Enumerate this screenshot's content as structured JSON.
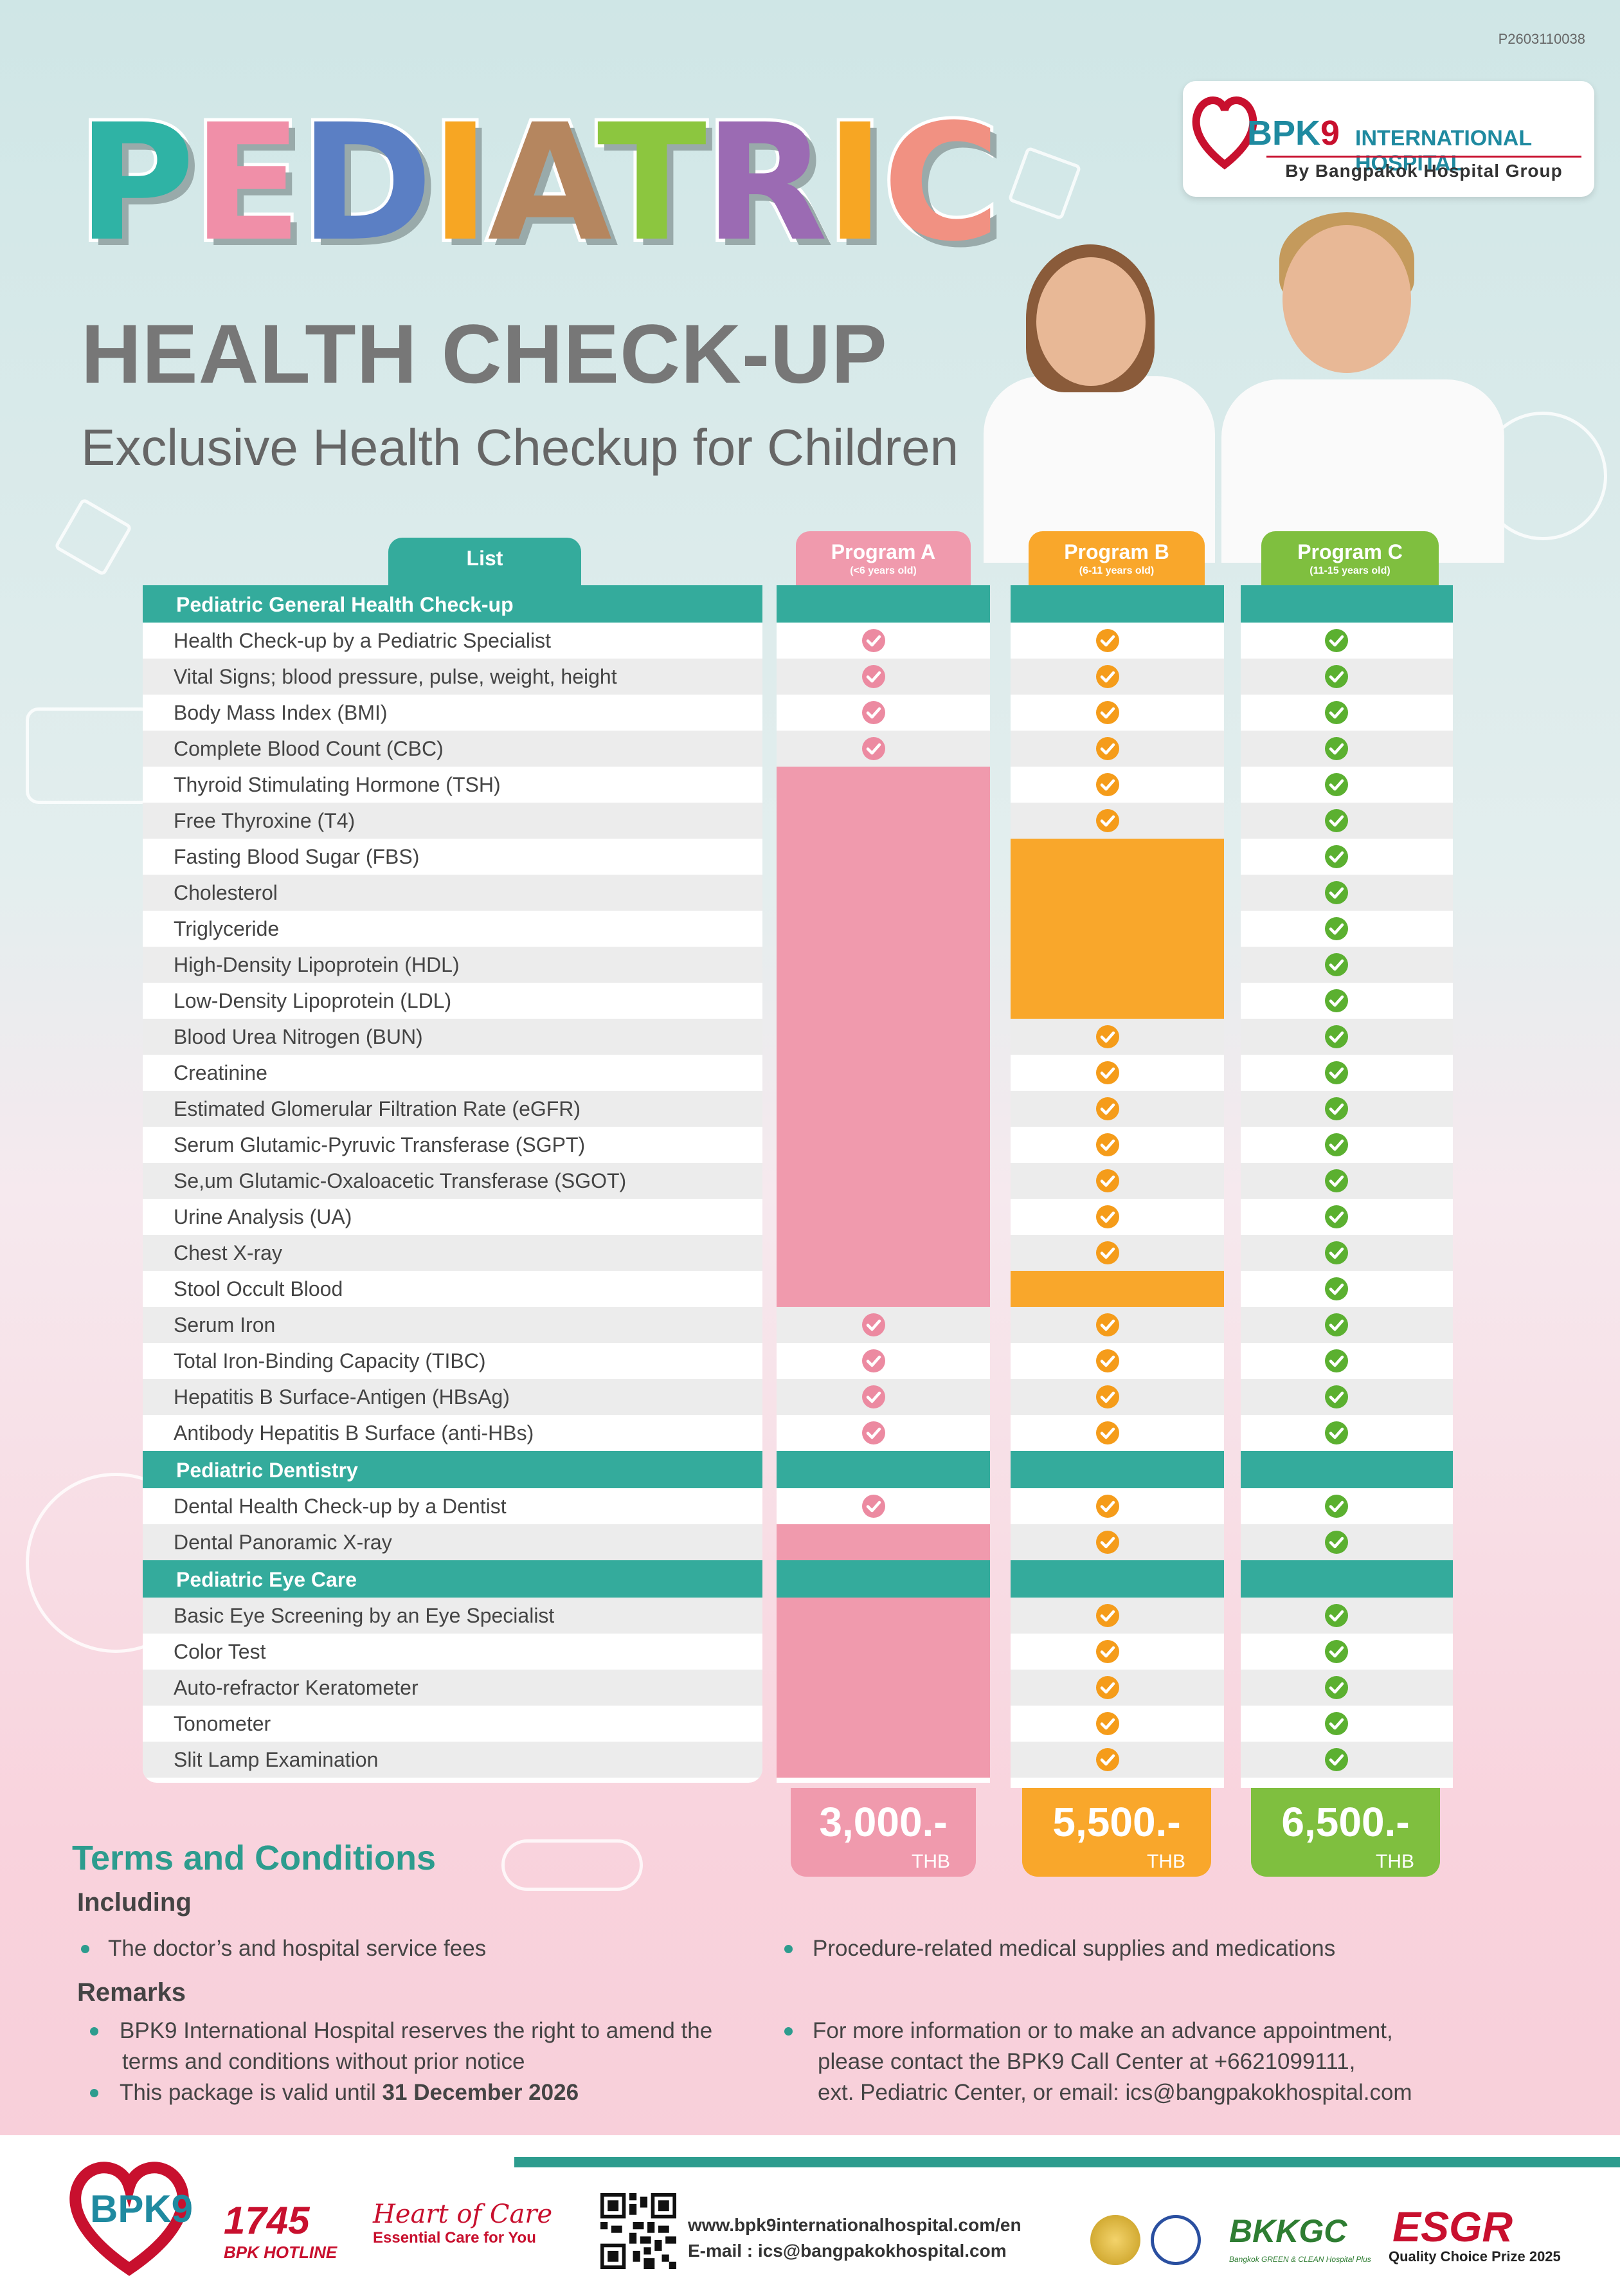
{
  "code": "P2603110038",
  "logo": {
    "name": "BPK",
    "nine": "9",
    "intl": "INTERNATIONAL HOSPITAL",
    "by": "By Bangpakok Hospital Group"
  },
  "title": {
    "letters": [
      {
        "ch": "P",
        "color": "#2fb3a5"
      },
      {
        "ch": "E",
        "color": "#f08fa8"
      },
      {
        "ch": "D",
        "color": "#5b7fc4"
      },
      {
        "ch": "I",
        "color": "#f7a623"
      },
      {
        "ch": "A",
        "color": "#b5865f"
      },
      {
        "ch": "T",
        "color": "#8cc63f"
      },
      {
        "ch": "R",
        "color": "#9b6bb3"
      },
      {
        "ch": "I",
        "color": "#f7a623"
      },
      {
        "ch": "C",
        "color": "#f19182"
      }
    ]
  },
  "subtitle1": "HEALTH CHECK-UP",
  "subtitle2": "Exclusive Health Checkup for Children",
  "colors": {
    "teal": "#34ab9c",
    "pink": "#f09aad",
    "orange": "#f9a72b",
    "green": "#7fbf3f",
    "pinkCheck": "#ec8aa1",
    "orangeCheck": "#f59c1a",
    "greenCheck": "#5bb030"
  },
  "table": {
    "list_tab": "List",
    "programs": [
      {
        "name": "Program A",
        "age": "(<6 years old)",
        "price": "3,000.-",
        "currency": "THB"
      },
      {
        "name": "Program B",
        "age": "(6-11 years old)",
        "price": "5,500.-",
        "currency": "THB"
      },
      {
        "name": "Program C",
        "age": "(11-15 years old)",
        "price": "6,500.-",
        "currency": "THB"
      }
    ],
    "rows": [
      {
        "section": "Pediatric General Health Check-up"
      },
      {
        "label": "Health Check-up by a Pediatric Specialist",
        "a": true,
        "b": true,
        "c": true
      },
      {
        "label": "Vital Signs; blood pressure, pulse, weight, height",
        "a": true,
        "b": true,
        "c": true
      },
      {
        "label": "Body Mass Index (BMI)",
        "a": true,
        "b": true,
        "c": true
      },
      {
        "label": "Complete Blood Count (CBC)",
        "a": true,
        "b": true,
        "c": true
      },
      {
        "label": "Thyroid Stimulating Hormone (TSH)",
        "a": false,
        "b": true,
        "c": true
      },
      {
        "label": "Free Thyroxine (T4)",
        "a": false,
        "b": true,
        "c": true
      },
      {
        "label": "Fasting Blood Sugar (FBS)",
        "a": false,
        "b": false,
        "c": true
      },
      {
        "label": "Cholesterol",
        "a": false,
        "b": false,
        "c": true
      },
      {
        "label": "Triglyceride",
        "a": false,
        "b": false,
        "c": true
      },
      {
        "label": "High-Density Lipoprotein (HDL)",
        "a": false,
        "b": false,
        "c": true
      },
      {
        "label": "Low-Density Lipoprotein (LDL)",
        "a": false,
        "b": false,
        "c": true
      },
      {
        "label": "Blood Urea Nitrogen (BUN)",
        "a": false,
        "b": true,
        "c": true
      },
      {
        "label": "Creatinine",
        "a": false,
        "b": true,
        "c": true
      },
      {
        "label": "Estimated Glomerular Filtration Rate (eGFR)",
        "a": false,
        "b": true,
        "c": true
      },
      {
        "label": "Serum Glutamic-Pyruvic Transferase (SGPT)",
        "a": false,
        "b": true,
        "c": true
      },
      {
        "label": "Se,um Glutamic-Oxaloacetic Transferase (SGOT)",
        "a": false,
        "b": true,
        "c": true
      },
      {
        "label": "Urine Analysis (UA)",
        "a": false,
        "b": true,
        "c": true
      },
      {
        "label": "Chest X-ray",
        "a": false,
        "b": true,
        "c": true
      },
      {
        "label": "Stool Occult Blood",
        "a": false,
        "b": false,
        "c": true
      },
      {
        "label": "Serum Iron",
        "a": true,
        "b": true,
        "c": true
      },
      {
        "label": "Total Iron-Binding Capacity (TIBC)",
        "a": true,
        "b": true,
        "c": true
      },
      {
        "label": "Hepatitis B Surface-Antigen (HBsAg)",
        "a": true,
        "b": true,
        "c": true
      },
      {
        "label": "Antibody Hepatitis B Surface (anti-HBs)",
        "a": true,
        "b": true,
        "c": true
      },
      {
        "section": "Pediatric Dentistry"
      },
      {
        "label": "Dental Health Check-up by a Dentist",
        "a": true,
        "b": true,
        "c": true
      },
      {
        "label": "Dental Panoramic X-ray",
        "a": false,
        "b": true,
        "c": true
      },
      {
        "section": "Pediatric Eye Care"
      },
      {
        "label": "Basic Eye Screening by an Eye Specialist",
        "a": false,
        "b": true,
        "c": true
      },
      {
        "label": "Color Test",
        "a": false,
        "b": true,
        "c": true
      },
      {
        "label": "Auto-refractor Keratometer",
        "a": false,
        "b": true,
        "c": true
      },
      {
        "label": "Tonometer",
        "a": false,
        "b": true,
        "c": true
      },
      {
        "label": "Slit Lamp Examination",
        "a": false,
        "b": true,
        "c": true
      }
    ]
  },
  "terms": {
    "title": "Terms and Conditions",
    "including": "Including",
    "inc1": "The doctor’s and hospital service fees",
    "inc2": "Procedure-related medical supplies and medications",
    "remarks": "Remarks",
    "rem1a": "BPK9 International Hospital reserves the right to amend the",
    "rem1b": "terms and conditions without prior notice",
    "rem2a": "This package is valid until ",
    "rem2b": "31 December 2026",
    "rem3a": "For more information or to make an advance appointment,",
    "rem3b": "please contact the BPK9 Call Center at +6621099111,",
    "rem3c": "ext. Pediatric Center, or email: ics@bangpakokhospital.com"
  },
  "footer": {
    "logo": "BPK9",
    "hotline_num": "1745",
    "hotline_label": "BPK HOTLINE",
    "heart": "Heart of Care",
    "heart_sub": "Essential Care for You",
    "web": "www.bpk9internationalhospital.com/en",
    "email": "E-mail  : ics@bangpakokhospital.com",
    "bkk": "BKKGC",
    "bkk_sub": "Bangkok GREEN & CLEAN Hospital Plus",
    "esgr": "ESGR",
    "quality": "Quality Choice Prize 2025"
  }
}
